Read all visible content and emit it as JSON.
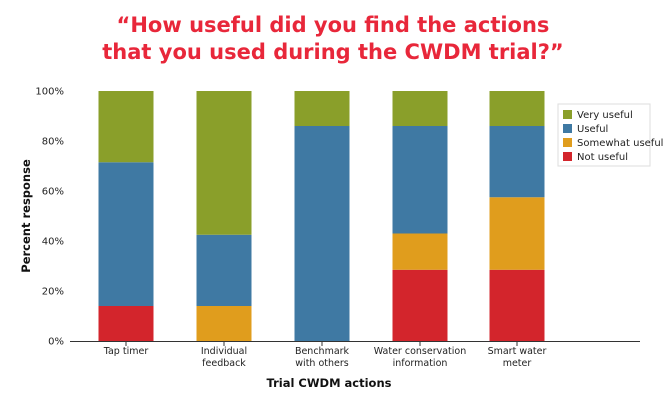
{
  "chart_data": {
    "type": "bar",
    "stacked": true,
    "title_line1": "“How useful did you find the actions",
    "title_line2": "that you used during the CWDM trial?”",
    "xlabel": "Trial CWDM actions",
    "ylabel": "Percent response",
    "ylim": [
      0,
      100
    ],
    "yticks": [
      "0%",
      "20%",
      "40%",
      "60%",
      "80%",
      "100%"
    ],
    "grid": false,
    "legend_position": "top-right",
    "categories": [
      [
        "Tap timer"
      ],
      [
        "Individual",
        "feedback"
      ],
      [
        "Benchmark",
        "with others"
      ],
      [
        "Water conservation",
        "information"
      ],
      [
        "Smart water",
        "meter"
      ]
    ],
    "series": [
      {
        "name": "Not useful",
        "color": "#d3252c",
        "values": [
          14,
          0,
          0,
          28.5,
          28.5
        ]
      },
      {
        "name": "Somewhat useful",
        "color": "#e09d1d",
        "values": [
          0,
          14,
          0,
          14.5,
          29
        ]
      },
      {
        "name": "Useful",
        "color": "#3f79a3",
        "values": [
          57.5,
          28.5,
          86,
          43,
          28.5
        ]
      },
      {
        "name": "Very useful",
        "color": "#8a9f2a",
        "values": [
          28.5,
          57.5,
          14,
          14,
          14
        ]
      }
    ],
    "legend_order": [
      "Very useful",
      "Useful",
      "Somewhat useful",
      "Not useful"
    ]
  }
}
